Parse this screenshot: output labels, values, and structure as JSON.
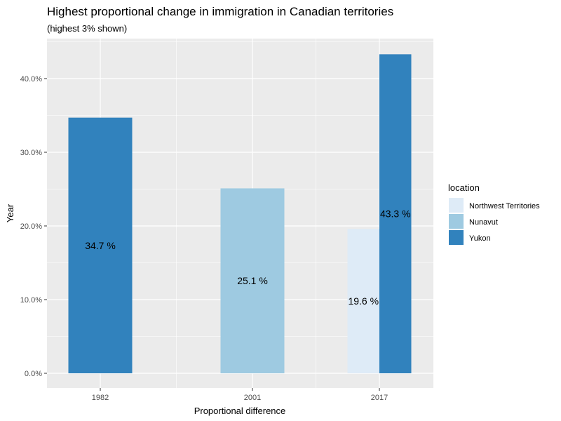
{
  "chart_data": {
    "type": "bar",
    "title": "Highest proportional change in immigration in Canadian territories",
    "subtitle": "(highest 3% shown)",
    "xlabel": "Proportional difference",
    "ylabel": "Year",
    "categories": [
      "1982",
      "2001",
      "2017"
    ],
    "ylim": [
      0,
      45
    ],
    "yticks": [
      0,
      10,
      20,
      30,
      40
    ],
    "ytick_labels": [
      "0.0%",
      "10.0%",
      "20.0%",
      "30.0%",
      "40.0%"
    ],
    "grid": true,
    "bars": [
      {
        "category": "1982",
        "series": "Yukon",
        "value": 34.7,
        "label": "34.7 %"
      },
      {
        "category": "2001",
        "series": "Nunavut",
        "value": 25.1,
        "label": "25.1 %"
      },
      {
        "category": "2017",
        "series": "Northwest Territories",
        "value": 19.6,
        "label": "19.6 %"
      },
      {
        "category": "2017",
        "series": "Yukon",
        "value": 43.3,
        "label": "43.3 %"
      }
    ],
    "legend": {
      "title": "location",
      "position": "right",
      "items": [
        {
          "name": "Northwest Territories",
          "color": "#deebf7"
        },
        {
          "name": "Nunavut",
          "color": "#9ecae1"
        },
        {
          "name": "Yukon",
          "color": "#3182bd"
        }
      ]
    },
    "colors": {
      "panel": "#ebebeb",
      "grid_major": "#ffffff",
      "tick_text": "#4d4d4d"
    }
  }
}
